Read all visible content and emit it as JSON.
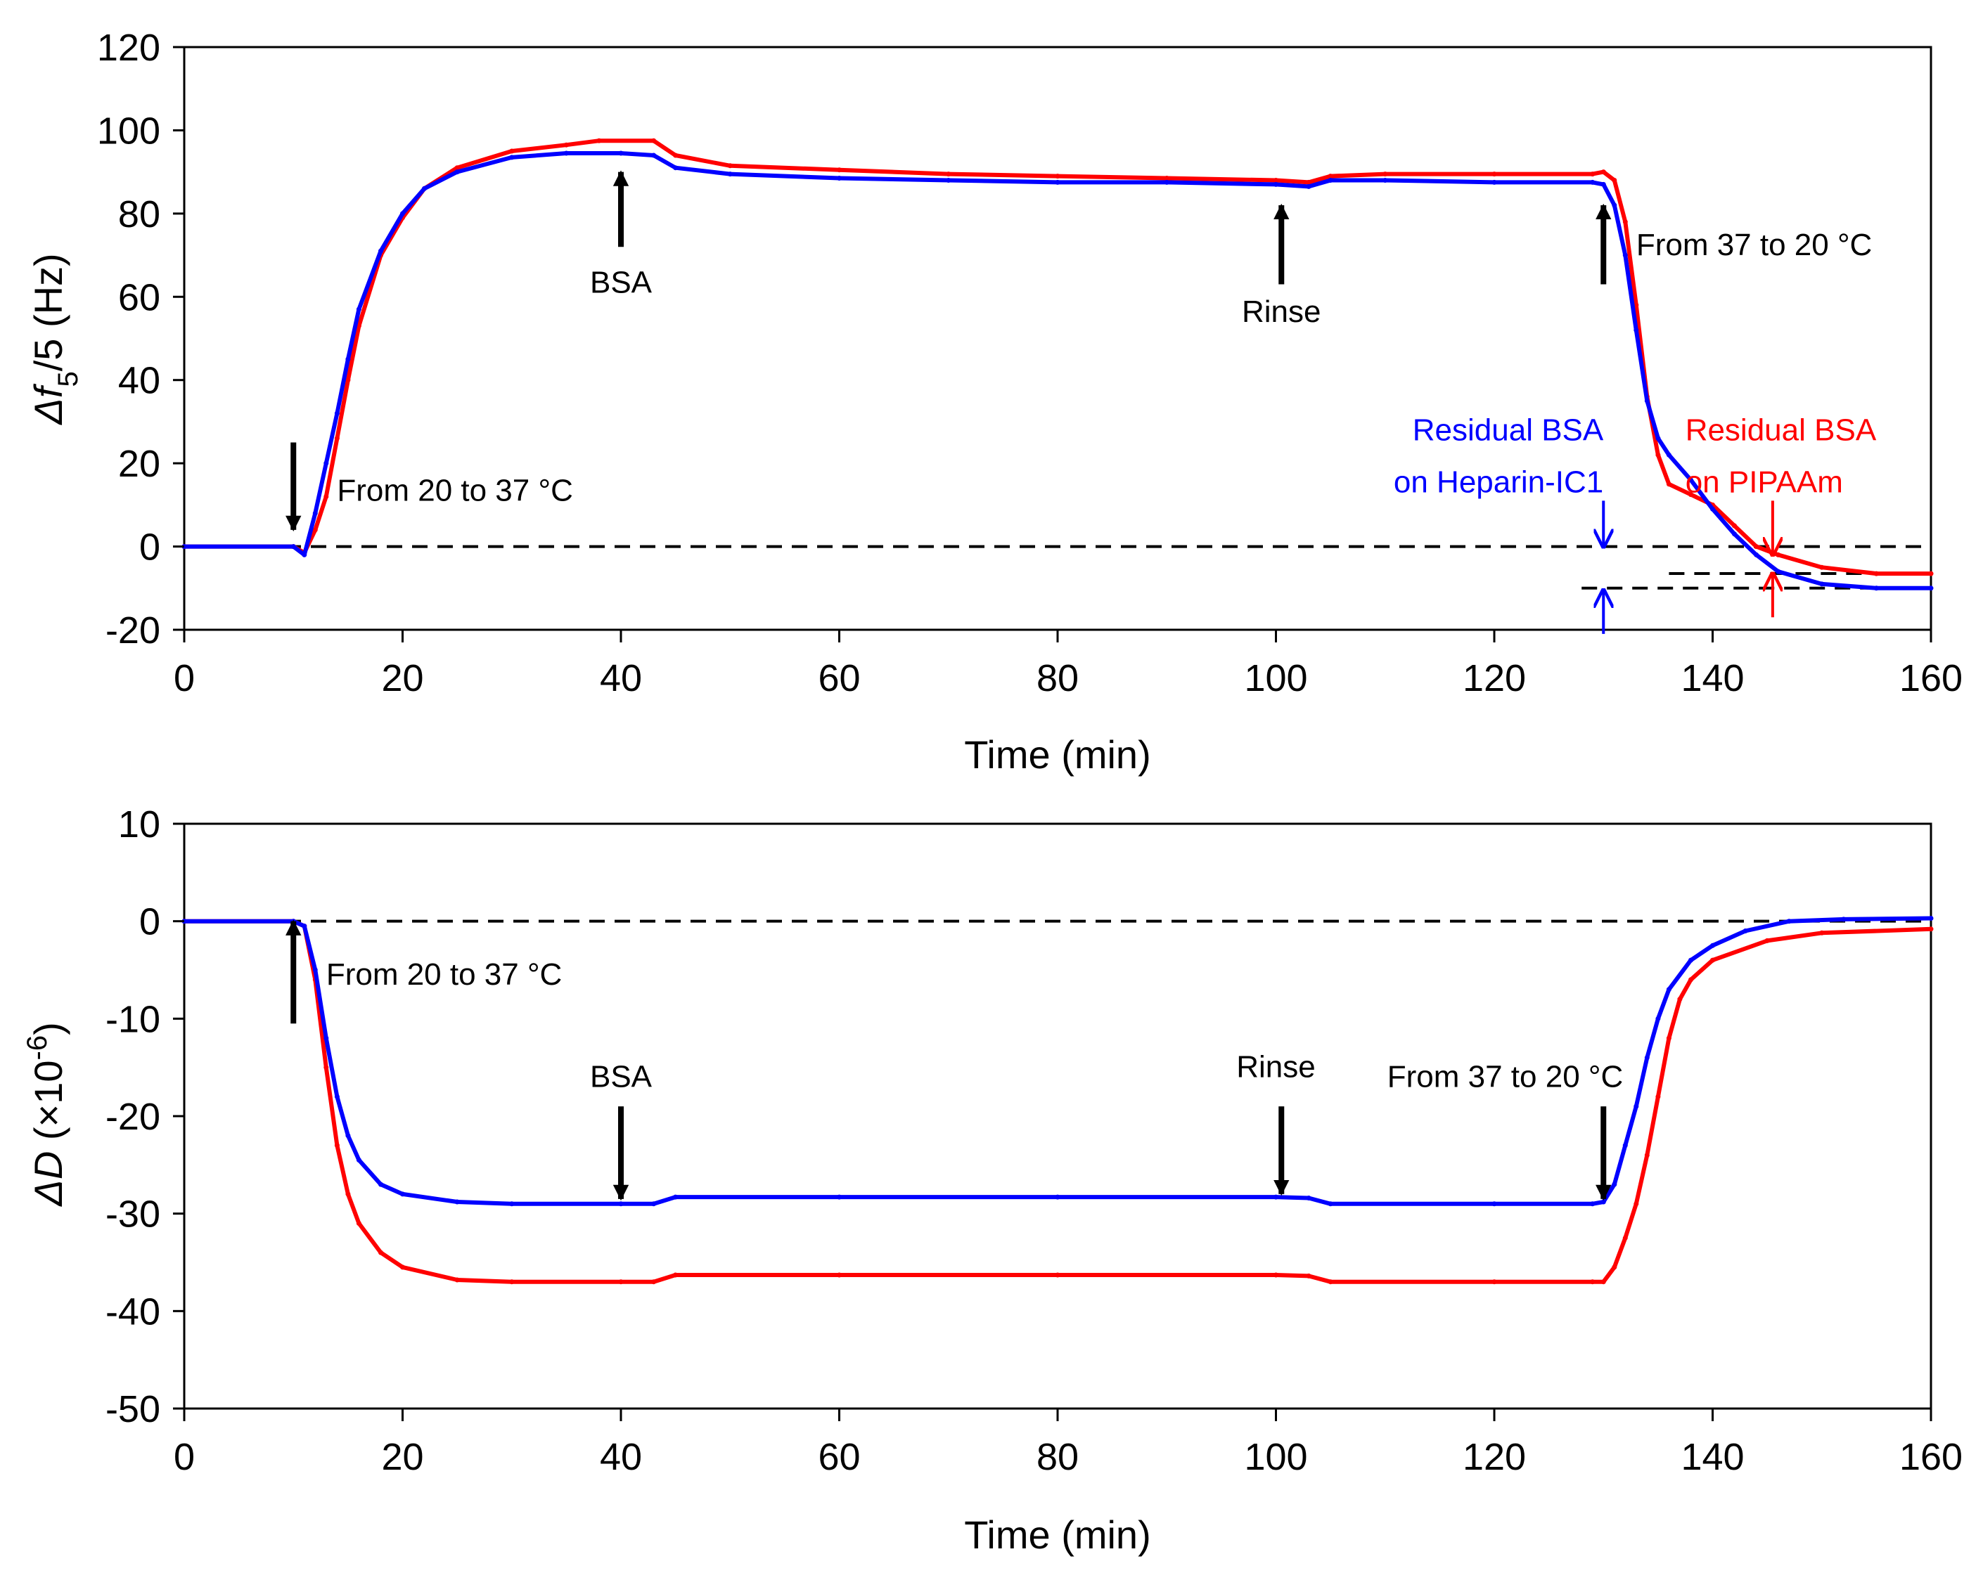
{
  "chart_data": [
    {
      "type": "scatter",
      "panel": "top",
      "title": "",
      "xlabel": "Time (min)",
      "ylabel": {
        "delta": "Δ",
        "f": "f",
        "sub": "5",
        "rest": "/5 (Hz)"
      },
      "xlim": [
        0,
        160
      ],
      "ylim": [
        -20,
        120
      ],
      "xticks": [
        "0",
        "20",
        "40",
        "60",
        "80",
        "100",
        "120",
        "140",
        "160"
      ],
      "yticks": [
        "-20",
        "0",
        "20",
        "40",
        "60",
        "80",
        "100",
        "120"
      ],
      "grid": false,
      "legend": "none",
      "series": [
        {
          "name": "PIPAAm",
          "color": "#ff0000",
          "points": [
            [
              0,
              0
            ],
            [
              10,
              0
            ],
            [
              11,
              -1.5
            ],
            [
              12,
              4
            ],
            [
              13,
              12
            ],
            [
              14,
              26
            ],
            [
              15,
              40
            ],
            [
              16,
              53
            ],
            [
              18,
              70
            ],
            [
              20,
              79
            ],
            [
              22,
              86
            ],
            [
              25,
              91
            ],
            [
              30,
              95
            ],
            [
              35,
              96.5
            ],
            [
              38,
              97.5
            ],
            [
              43,
              97.5
            ],
            [
              45,
              94
            ],
            [
              50,
              91.5
            ],
            [
              60,
              90.5
            ],
            [
              70,
              89.5
            ],
            [
              80,
              89
            ],
            [
              90,
              88.5
            ],
            [
              100,
              88
            ],
            [
              103,
              87.5
            ],
            [
              105,
              89
            ],
            [
              110,
              89.5
            ],
            [
              120,
              89.5
            ],
            [
              129,
              89.5
            ],
            [
              130,
              90
            ],
            [
              131,
              88
            ],
            [
              132,
              78
            ],
            [
              133,
              58
            ],
            [
              134,
              36
            ],
            [
              135,
              22
            ],
            [
              136,
              15
            ],
            [
              138,
              12.5
            ],
            [
              140,
              10
            ],
            [
              142,
              5
            ],
            [
              144,
              0
            ],
            [
              146,
              -2
            ],
            [
              150,
              -5
            ],
            [
              155,
              -6.5
            ],
            [
              160,
              -6.5
            ]
          ]
        },
        {
          "name": "Heparin-IC1",
          "color": "#0000ff",
          "points": [
            [
              0,
              0
            ],
            [
              10,
              0
            ],
            [
              11,
              -2
            ],
            [
              12,
              8
            ],
            [
              13,
              20
            ],
            [
              14,
              32
            ],
            [
              15,
              45
            ],
            [
              16,
              57
            ],
            [
              18,
              71
            ],
            [
              20,
              80
            ],
            [
              22,
              86
            ],
            [
              25,
              90
            ],
            [
              30,
              93.5
            ],
            [
              35,
              94.5
            ],
            [
              40,
              94.5
            ],
            [
              43,
              94
            ],
            [
              45,
              91
            ],
            [
              50,
              89.5
            ],
            [
              60,
              88.5
            ],
            [
              70,
              88
            ],
            [
              80,
              87.5
            ],
            [
              90,
              87.5
            ],
            [
              100,
              87
            ],
            [
              103,
              86.5
            ],
            [
              105,
              88
            ],
            [
              110,
              88
            ],
            [
              120,
              87.5
            ],
            [
              129,
              87.5
            ],
            [
              130,
              87
            ],
            [
              131,
              82
            ],
            [
              132,
              70
            ],
            [
              133,
              52
            ],
            [
              134,
              35
            ],
            [
              135,
              26
            ],
            [
              136,
              22
            ],
            [
              138,
              16
            ],
            [
              140,
              9
            ],
            [
              142,
              3
            ],
            [
              144,
              -2
            ],
            [
              146,
              -6
            ],
            [
              150,
              -9
            ],
            [
              155,
              -10
            ],
            [
              160,
              -10
            ]
          ]
        }
      ],
      "reference_lines": [
        {
          "y": 0,
          "x_from": 0,
          "x_to": 160
        },
        {
          "y": -6.5,
          "x_from": 136,
          "x_to": 160
        },
        {
          "y": -10,
          "x_from": 128,
          "x_to": 160
        }
      ],
      "annotations": [
        {
          "text": "From 20 to 37 °C",
          "x": 14,
          "y": 11,
          "anchor": "start",
          "color": "black"
        },
        {
          "text": "BSA",
          "x": 40,
          "y": 61,
          "anchor": "middle",
          "color": "black"
        },
        {
          "text": "Rinse",
          "x": 100.5,
          "y": 54,
          "anchor": "middle",
          "color": "black"
        },
        {
          "text": "From 37 to 20 °C",
          "x": 133,
          "y": 70,
          "anchor": "start",
          "color": "black"
        },
        {
          "text": "Residual BSA",
          "x": 130,
          "y": 25.5,
          "anchor": "end",
          "color": "blue"
        },
        {
          "text": "on Heparin-IC1",
          "x": 130,
          "y": 13,
          "anchor": "end",
          "color": "blue"
        },
        {
          "text": "Residual BSA",
          "x": 137.5,
          "y": 25.5,
          "anchor": "start",
          "color": "red"
        },
        {
          "text": "on PIPAAm",
          "x": 137.5,
          "y": 13,
          "anchor": "start",
          "color": "red"
        }
      ],
      "arrows": [
        {
          "x": 10,
          "from": 25,
          "to": 4,
          "color": "black",
          "weight": "heavy"
        },
        {
          "x": 40,
          "from": 72,
          "to": 90,
          "color": "black",
          "weight": "heavy"
        },
        {
          "x": 100.5,
          "from": 63,
          "to": 82,
          "color": "black",
          "weight": "heavy"
        },
        {
          "x": 130,
          "from": 63,
          "to": 82,
          "color": "black",
          "weight": "heavy"
        },
        {
          "x": 130,
          "from": 11,
          "to": 0,
          "color": "blue",
          "weight": "light"
        },
        {
          "x": 130,
          "from": -21,
          "to": -10.5,
          "color": "blue",
          "weight": "light"
        },
        {
          "x": 145.5,
          "from": 11,
          "to": -2,
          "color": "red",
          "weight": "light"
        },
        {
          "x": 145.5,
          "from": -17,
          "to": -6.5,
          "color": "red",
          "weight": "light"
        }
      ]
    },
    {
      "type": "scatter",
      "panel": "bottom",
      "title": "",
      "xlabel": "Time (min)",
      "ylabel": {
        "delta": "Δ",
        "d": "D",
        "rest": " (×10",
        "sup": "-6",
        "close": ")"
      },
      "xlim": [
        0,
        160
      ],
      "ylim": [
        -50,
        10
      ],
      "xticks": [
        "0",
        "20",
        "40",
        "60",
        "80",
        "100",
        "120",
        "140",
        "160"
      ],
      "yticks": [
        "-50",
        "-40",
        "-30",
        "-20",
        "-10",
        "0",
        "10"
      ],
      "grid": false,
      "legend": "none",
      "series": [
        {
          "name": "PIPAAm",
          "color": "#ff0000",
          "points": [
            [
              0,
              0
            ],
            [
              10,
              0
            ],
            [
              11,
              -0.5
            ],
            [
              12,
              -6
            ],
            [
              13,
              -15
            ],
            [
              14,
              -23
            ],
            [
              15,
              -28
            ],
            [
              16,
              -31
            ],
            [
              18,
              -34
            ],
            [
              20,
              -35.5
            ],
            [
              25,
              -36.8
            ],
            [
              30,
              -37
            ],
            [
              40,
              -37
            ],
            [
              43,
              -37
            ],
            [
              45,
              -36.3
            ],
            [
              60,
              -36.3
            ],
            [
              80,
              -36.3
            ],
            [
              100,
              -36.3
            ],
            [
              103,
              -36.4
            ],
            [
              105,
              -37
            ],
            [
              120,
              -37
            ],
            [
              129,
              -37
            ],
            [
              130,
              -37
            ],
            [
              131,
              -35.5
            ],
            [
              132,
              -32.5
            ],
            [
              133,
              -29
            ],
            [
              134,
              -24
            ],
            [
              135,
              -18
            ],
            [
              136,
              -12
            ],
            [
              137,
              -8
            ],
            [
              138,
              -6
            ],
            [
              140,
              -4
            ],
            [
              145,
              -2
            ],
            [
              150,
              -1.2
            ],
            [
              160,
              -0.8
            ]
          ]
        },
        {
          "name": "Heparin-IC1",
          "color": "#0000ff",
          "points": [
            [
              0,
              0
            ],
            [
              10,
              0
            ],
            [
              11,
              -0.5
            ],
            [
              12,
              -5
            ],
            [
              13,
              -12
            ],
            [
              14,
              -18
            ],
            [
              15,
              -22
            ],
            [
              16,
              -24.5
            ],
            [
              18,
              -27
            ],
            [
              20,
              -28
            ],
            [
              25,
              -28.8
            ],
            [
              30,
              -29
            ],
            [
              40,
              -29
            ],
            [
              43,
              -29
            ],
            [
              45,
              -28.3
            ],
            [
              60,
              -28.3
            ],
            [
              80,
              -28.3
            ],
            [
              100,
              -28.3
            ],
            [
              103,
              -28.4
            ],
            [
              105,
              -29
            ],
            [
              120,
              -29
            ],
            [
              129,
              -29
            ],
            [
              130,
              -28.8
            ],
            [
              131,
              -27
            ],
            [
              132,
              -23
            ],
            [
              133,
              -19
            ],
            [
              134,
              -14
            ],
            [
              135,
              -10
            ],
            [
              136,
              -7
            ],
            [
              138,
              -4
            ],
            [
              140,
              -2.5
            ],
            [
              143,
              -1
            ],
            [
              147,
              0
            ],
            [
              152,
              0.2
            ],
            [
              160,
              0.3
            ]
          ]
        }
      ],
      "reference_lines": [
        {
          "y": 0,
          "x_from": 0,
          "x_to": 160
        }
      ],
      "annotations": [
        {
          "text": "From 20 to 37 °C",
          "x": 13,
          "y": -6.5,
          "anchor": "start",
          "color": "black"
        },
        {
          "text": "BSA",
          "x": 40,
          "y": -17,
          "anchor": "middle",
          "color": "black"
        },
        {
          "text": "Rinse",
          "x": 100,
          "y": -16,
          "anchor": "middle",
          "color": "black"
        },
        {
          "text": "From 37 to 20 °C",
          "x": 121,
          "y": -17,
          "anchor": "middle",
          "color": "black"
        }
      ],
      "arrows": [
        {
          "x": 10,
          "from": -10.5,
          "to": 0,
          "color": "black",
          "weight": "heavy"
        },
        {
          "x": 40,
          "from": -19,
          "to": -28.5,
          "color": "black",
          "weight": "heavy"
        },
        {
          "x": 100.5,
          "from": -19,
          "to": -28,
          "color": "black",
          "weight": "heavy"
        },
        {
          "x": 130,
          "from": -19,
          "to": -28.5,
          "color": "black",
          "weight": "heavy"
        }
      ]
    }
  ]
}
